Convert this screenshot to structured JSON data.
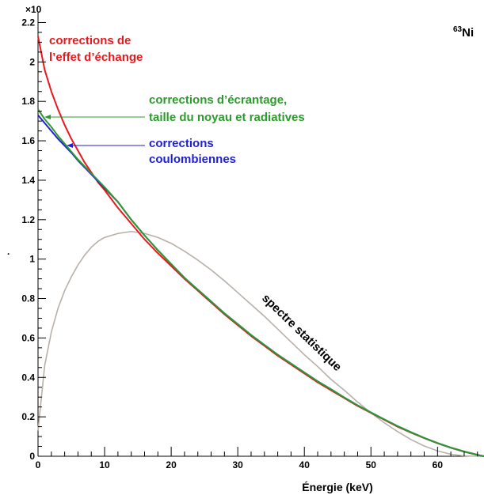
{
  "chart_data": {
    "type": "line",
    "xlabel": "Énergie (keV)",
    "exponent_label": "×10",
    "ylabel": ".",
    "isotope": {
      "mass": "63",
      "symbol": "Ni"
    },
    "xlim": [
      0,
      66.98
    ],
    "ylim": [
      0,
      2.25
    ],
    "xticks": [
      0,
      10,
      20,
      30,
      40,
      50,
      60
    ],
    "yticks": [
      0,
      0.2,
      0.4,
      0.6,
      0.8,
      1,
      1.2,
      1.4,
      1.6,
      1.8,
      2,
      2.2
    ],
    "x": [
      0,
      1,
      2,
      3,
      4,
      5,
      6,
      7,
      8,
      9,
      10,
      12,
      14,
      16,
      18,
      20,
      22,
      24,
      26,
      28,
      30,
      32,
      34,
      36,
      38,
      40,
      42,
      44,
      46,
      48,
      50,
      52,
      54,
      56,
      58,
      60,
      62,
      64,
      66,
      66.98
    ],
    "series": [
      {
        "name": "corrections de l'effet d'échange",
        "color": "#e8191c",
        "values": [
          2.13,
          1.96,
          1.85,
          1.76,
          1.68,
          1.61,
          1.55,
          1.49,
          1.44,
          1.39,
          1.35,
          1.26,
          1.18,
          1.1,
          1.03,
          0.965,
          0.9,
          0.84,
          0.78,
          0.72,
          0.665,
          0.61,
          0.56,
          0.51,
          0.465,
          0.42,
          0.375,
          0.335,
          0.295,
          0.255,
          0.22,
          0.185,
          0.15,
          0.12,
          0.092,
          0.066,
          0.043,
          0.023,
          0.007,
          0
        ]
      },
      {
        "name": "corrections coulombiennes",
        "color": "#2020d8",
        "values": [
          1.73,
          1.69,
          1.65,
          1.61,
          1.575,
          1.54,
          1.5,
          1.465,
          1.43,
          1.395,
          1.36,
          1.29,
          1.2,
          1.12,
          1.045,
          0.975,
          0.905,
          0.845,
          0.785,
          0.725,
          0.67,
          0.615,
          0.565,
          0.515,
          0.47,
          0.425,
          0.38,
          0.34,
          0.298,
          0.258,
          0.222,
          0.187,
          0.153,
          0.122,
          0.093,
          0.067,
          0.044,
          0.024,
          0.007,
          0
        ]
      },
      {
        "name": "corrections d'écrantage, taille du noyau et radiatives",
        "color": "#2e9a2e",
        "values": [
          1.76,
          1.71,
          1.67,
          1.625,
          1.585,
          1.545,
          1.505,
          1.47,
          1.435,
          1.4,
          1.365,
          1.29,
          1.2,
          1.12,
          1.045,
          0.975,
          0.905,
          0.845,
          0.785,
          0.725,
          0.67,
          0.615,
          0.565,
          0.515,
          0.47,
          0.425,
          0.38,
          0.34,
          0.298,
          0.258,
          0.222,
          0.187,
          0.153,
          0.122,
          0.093,
          0.067,
          0.044,
          0.024,
          0.007,
          0
        ]
      },
      {
        "name": "spectre statistique",
        "color": "#b8b0a8",
        "values": [
          0.13,
          0.46,
          0.63,
          0.75,
          0.84,
          0.91,
          0.97,
          1.02,
          1.06,
          1.09,
          1.11,
          1.13,
          1.14,
          1.13,
          1.11,
          1.08,
          1.04,
          0.995,
          0.945,
          0.89,
          0.83,
          0.77,
          0.71,
          0.645,
          0.58,
          0.515,
          0.455,
          0.39,
          0.335,
          0.275,
          0.22,
          0.17,
          0.125,
          0.085,
          0.052,
          0.027,
          0.01,
          0.002,
          0,
          0
        ]
      }
    ],
    "annotations": [
      {
        "id": "exchange",
        "lines": [
          "corrections de",
          "l’effet d’échange"
        ],
        "color": "#e8191c"
      },
      {
        "id": "screening",
        "lines": [
          "corrections d’écrantage,",
          "taille du noyau et radiatives"
        ],
        "color": "#2e9a2e"
      },
      {
        "id": "coulomb",
        "lines": [
          "corrections",
          "coulombiennes"
        ],
        "color": "#2020d8"
      },
      {
        "id": "statistical",
        "lines": [
          "spectre statistique"
        ],
        "color": "#000000"
      }
    ],
    "grid": false,
    "legend": "none"
  }
}
